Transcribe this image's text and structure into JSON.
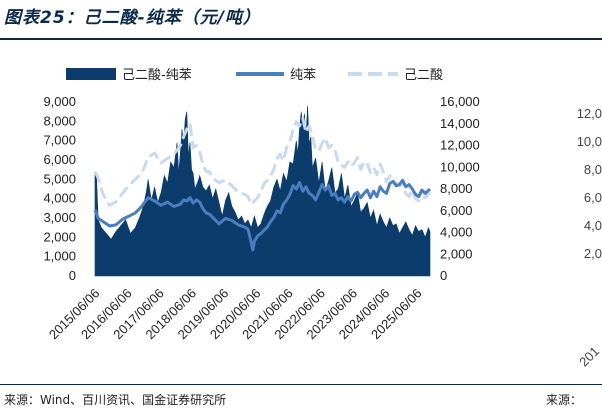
{
  "header": {
    "title": "图表25：己二酸-纯苯（元/吨）"
  },
  "footer": {
    "source": "来源：Wind、百川资讯、国金证券研究所",
    "source_right": "来源："
  },
  "ghost_chart": {
    "tick_labels": [
      "12,0",
      "10,0",
      "8,0",
      "6,0",
      "4,0",
      "2,0"
    ],
    "x_label": "201"
  },
  "colors": {
    "spread": "#0b3c6b",
    "benzene": "#4a7ebf",
    "adipic": "#c9daee"
  },
  "chart_data": {
    "type": "area+line",
    "title": "己二酸-纯苯（元/吨）",
    "legend": [
      "己二酸-纯苯",
      "纯苯",
      "己二酸"
    ],
    "left_axis": {
      "ylim": [
        0,
        9000
      ],
      "ticks": [
        "0",
        "1,000",
        "2,000",
        "3,000",
        "4,000",
        "5,000",
        "6,000",
        "7,000",
        "8,000",
        "9,000"
      ]
    },
    "right_axis": {
      "ylim": [
        0,
        16000
      ],
      "ticks": [
        "0",
        "2,000",
        "4,000",
        "6,000",
        "8,000",
        "10,000",
        "12,000",
        "14,000",
        "16,000"
      ]
    },
    "x_ticks": [
      "2015/06/06",
      "2016/06/06",
      "2017/06/06",
      "2018/06/06",
      "2019/06/06",
      "2020/06/06",
      "2021/06/06",
      "2022/06/06",
      "2023/06/06",
      "2024/06/06",
      "2025/06/06"
    ],
    "x_range": [
      2015.45,
      2025.85
    ],
    "series": [
      {
        "name": "己二酸-纯苯",
        "axis": "left",
        "style": "area",
        "x": [
          2015.45,
          2015.5,
          2015.55,
          2015.65,
          2015.8,
          2015.95,
          2016.1,
          2016.25,
          2016.4,
          2016.55,
          2016.7,
          2016.85,
          2016.95,
          2017.05,
          2017.1,
          2017.2,
          2017.3,
          2017.4,
          2017.5,
          2017.6,
          2017.7,
          2017.8,
          2017.9,
          2018.0,
          2018.05,
          2018.1,
          2018.15,
          2018.2,
          2018.25,
          2018.3,
          2018.35,
          2018.4,
          2018.45,
          2018.5,
          2018.55,
          2018.6,
          2018.65,
          2018.7,
          2018.8,
          2018.9,
          2019.0,
          2019.1,
          2019.2,
          2019.3,
          2019.4,
          2019.5,
          2019.6,
          2019.7,
          2019.8,
          2019.9,
          2020.0,
          2020.1,
          2020.2,
          2020.3,
          2020.4,
          2020.5,
          2020.6,
          2020.7,
          2020.8,
          2020.9,
          2021.0,
          2021.1,
          2021.2,
          2021.3,
          2021.4,
          2021.5,
          2021.6,
          2021.7,
          2021.75,
          2021.8,
          2021.85,
          2021.9,
          2021.95,
          2022.0,
          2022.05,
          2022.1,
          2022.15,
          2022.2,
          2022.3,
          2022.4,
          2022.5,
          2022.6,
          2022.7,
          2022.8,
          2022.9,
          2023.0,
          2023.1,
          2023.2,
          2023.3,
          2023.4,
          2023.5,
          2023.6,
          2023.7,
          2023.8,
          2023.9,
          2024.0,
          2024.1,
          2024.2,
          2024.3,
          2024.4,
          2024.5,
          2024.6,
          2024.7,
          2024.8,
          2024.9,
          2025.0,
          2025.1,
          2025.2,
          2025.3,
          2025.4,
          2025.5,
          2025.6,
          2025.7,
          2025.8,
          2025.85
        ],
        "values": [
          5300,
          5000,
          2900,
          2500,
          2200,
          1900,
          2300,
          2600,
          2900,
          2200,
          2500,
          3100,
          3600,
          4400,
          5000,
          3900,
          4600,
          3800,
          4300,
          5200,
          4800,
          5900,
          5600,
          6900,
          5300,
          6400,
          7600,
          6800,
          8100,
          8500,
          6200,
          6900,
          5500,
          5300,
          4500,
          4700,
          4900,
          5200,
          4600,
          4400,
          4700,
          4000,
          4500,
          3800,
          3100,
          3900,
          4300,
          3600,
          3300,
          2900,
          3100,
          2700,
          2900,
          2500,
          3100,
          2500,
          2700,
          3200,
          3600,
          3900,
          4600,
          5000,
          4400,
          5300,
          4900,
          5900,
          5800,
          7000,
          6300,
          7600,
          8500,
          7600,
          8400,
          7200,
          8800,
          6800,
          7200,
          5600,
          6100,
          4800,
          5900,
          4400,
          4900,
          5600,
          4300,
          4500,
          5300,
          4000,
          4700,
          3600,
          3900,
          4300,
          3300,
          3500,
          3800,
          3000,
          3400,
          2600,
          3200,
          2800,
          2500,
          3000,
          2600,
          2700,
          2200,
          2500,
          2800,
          2400,
          2100,
          2600,
          2300,
          2400,
          2000,
          2500,
          2300
        ]
      },
      {
        "name": "纯苯",
        "axis": "right",
        "style": "line",
        "x": [
          2015.45,
          2015.55,
          2015.7,
          2015.9,
          2016.1,
          2016.3,
          2016.5,
          2016.7,
          2016.9,
          2017.1,
          2017.3,
          2017.5,
          2017.7,
          2017.9,
          2018.1,
          2018.2,
          2018.3,
          2018.4,
          2018.5,
          2018.6,
          2018.7,
          2018.8,
          2018.9,
          2019.0,
          2019.1,
          2019.3,
          2019.5,
          2019.7,
          2019.9,
          2020.1,
          2020.2,
          2020.3,
          2020.35,
          2020.4,
          2020.5,
          2020.6,
          2020.7,
          2020.8,
          2020.9,
          2021.0,
          2021.1,
          2021.2,
          2021.3,
          2021.4,
          2021.5,
          2021.6,
          2021.7,
          2021.8,
          2021.9,
          2022.0,
          2022.1,
          2022.2,
          2022.3,
          2022.4,
          2022.5,
          2022.6,
          2022.7,
          2022.8,
          2022.9,
          2023.0,
          2023.1,
          2023.2,
          2023.3,
          2023.4,
          2023.5,
          2023.6,
          2023.7,
          2023.8,
          2023.9,
          2024.0,
          2024.1,
          2024.2,
          2024.3,
          2024.4,
          2024.5,
          2024.6,
          2024.7,
          2024.8,
          2024.9,
          2025.0,
          2025.1,
          2025.2,
          2025.3,
          2025.4,
          2025.5,
          2025.6,
          2025.7,
          2025.85
        ],
        "values": [
          6100,
          5300,
          5000,
          4600,
          4700,
          5200,
          5500,
          5800,
          6400,
          7200,
          6900,
          6500,
          6800,
          6400,
          6600,
          7000,
          6900,
          7200,
          6700,
          7000,
          6800,
          6200,
          5800,
          5700,
          5400,
          4800,
          5300,
          5100,
          4700,
          4500,
          4300,
          3100,
          2400,
          3200,
          3700,
          3900,
          4200,
          4500,
          5000,
          5400,
          6000,
          5800,
          6600,
          7000,
          7500,
          8300,
          8000,
          8600,
          7800,
          8200,
          7600,
          7400,
          7000,
          7700,
          8400,
          7900,
          8300,
          7400,
          7600,
          7000,
          7200,
          6800,
          7300,
          6900,
          7500,
          7700,
          7200,
          7600,
          7900,
          7200,
          7800,
          7300,
          8200,
          7800,
          7600,
          8500,
          8700,
          8300,
          8400,
          8800,
          8200,
          8400,
          8000,
          7500,
          7300,
          7900,
          7600,
          8000
        ]
      },
      {
        "name": "己二酸",
        "axis": "right",
        "style": "dashed",
        "x": [
          2015.45,
          2015.55,
          2015.7,
          2015.9,
          2016.1,
          2016.3,
          2016.5,
          2016.7,
          2016.9,
          2017.1,
          2017.3,
          2017.5,
          2017.7,
          2017.9,
          2018.1,
          2018.2,
          2018.3,
          2018.4,
          2018.5,
          2018.6,
          2018.7,
          2018.8,
          2018.9,
          2019.0,
          2019.1,
          2019.3,
          2019.5,
          2019.7,
          2019.9,
          2020.1,
          2020.2,
          2020.3,
          2020.4,
          2020.5,
          2020.6,
          2020.7,
          2020.8,
          2020.9,
          2021.0,
          2021.1,
          2021.2,
          2021.3,
          2021.4,
          2021.5,
          2021.6,
          2021.7,
          2021.8,
          2021.9,
          2022.0,
          2022.1,
          2022.2,
          2022.3,
          2022.4,
          2022.5,
          2022.6,
          2022.7,
          2022.8,
          2022.9,
          2023.0,
          2023.1,
          2023.2,
          2023.3,
          2023.4,
          2023.5,
          2023.6,
          2023.7,
          2023.8,
          2023.9,
          2024.0,
          2024.1,
          2024.2,
          2024.3,
          2024.4,
          2024.5,
          2024.6,
          2024.7,
          2024.8,
          2024.9,
          2025.0,
          2025.1,
          2025.2,
          2025.3,
          2025.4,
          2025.5,
          2025.6,
          2025.7,
          2025.85
        ],
        "values": [
          9600,
          9000,
          7500,
          6500,
          6800,
          7600,
          8300,
          8900,
          9400,
          10900,
          11300,
          10400,
          10800,
          11200,
          12000,
          12800,
          13500,
          14000,
          11800,
          12000,
          11400,
          10300,
          9600,
          9600,
          9000,
          8600,
          8800,
          8300,
          7700,
          7500,
          7300,
          6600,
          6900,
          7200,
          7800,
          8500,
          8800,
          9200,
          9800,
          10800,
          11200,
          10600,
          11800,
          12300,
          13500,
          14200,
          13800,
          14500,
          13200,
          13800,
          12900,
          11600,
          11500,
          12200,
          12700,
          11800,
          12000,
          11600,
          10400,
          10200,
          10000,
          10500,
          10100,
          10400,
          10900,
          9800,
          10500,
          10400,
          9500,
          10000,
          9300,
          10300,
          9600,
          8700,
          9200,
          8900,
          8500,
          8300,
          8400,
          7600,
          7300,
          7900,
          7100,
          6900,
          7300,
          7200,
          7700
        ]
      }
    ]
  }
}
